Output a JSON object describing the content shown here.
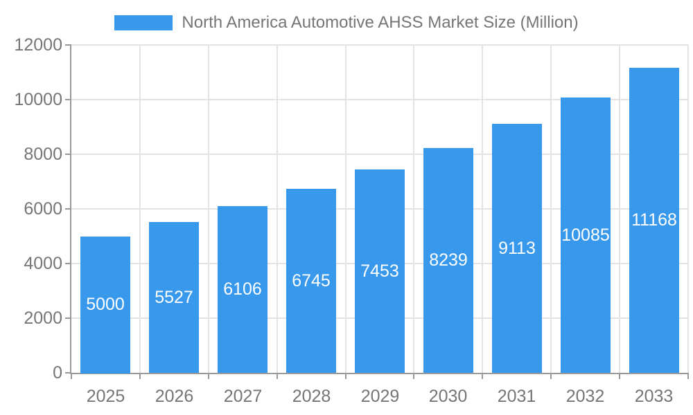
{
  "chart_data": {
    "type": "bar",
    "title": "North America Automotive AHSS Market Size (Million)",
    "categories": [
      "2025",
      "2026",
      "2027",
      "2028",
      "2029",
      "2030",
      "2031",
      "2032",
      "2033"
    ],
    "values": [
      5000,
      5527,
      6106,
      6745,
      7453,
      8239,
      9113,
      10085,
      11168
    ],
    "xlabel": "",
    "ylabel": "",
    "ylim": [
      0,
      12000
    ],
    "y_ticks": [
      0,
      2000,
      4000,
      6000,
      8000,
      10000,
      12000
    ],
    "grid": true,
    "legend_position": "top",
    "value_labels_position": "inside-middle",
    "colors": {
      "bar": "#3899EC",
      "value_label": "#FFFFFF",
      "axis_text": "#757575",
      "axis_line": "#999999",
      "grid_line": "#E3E3E3",
      "background": "#FFFFFF"
    }
  }
}
